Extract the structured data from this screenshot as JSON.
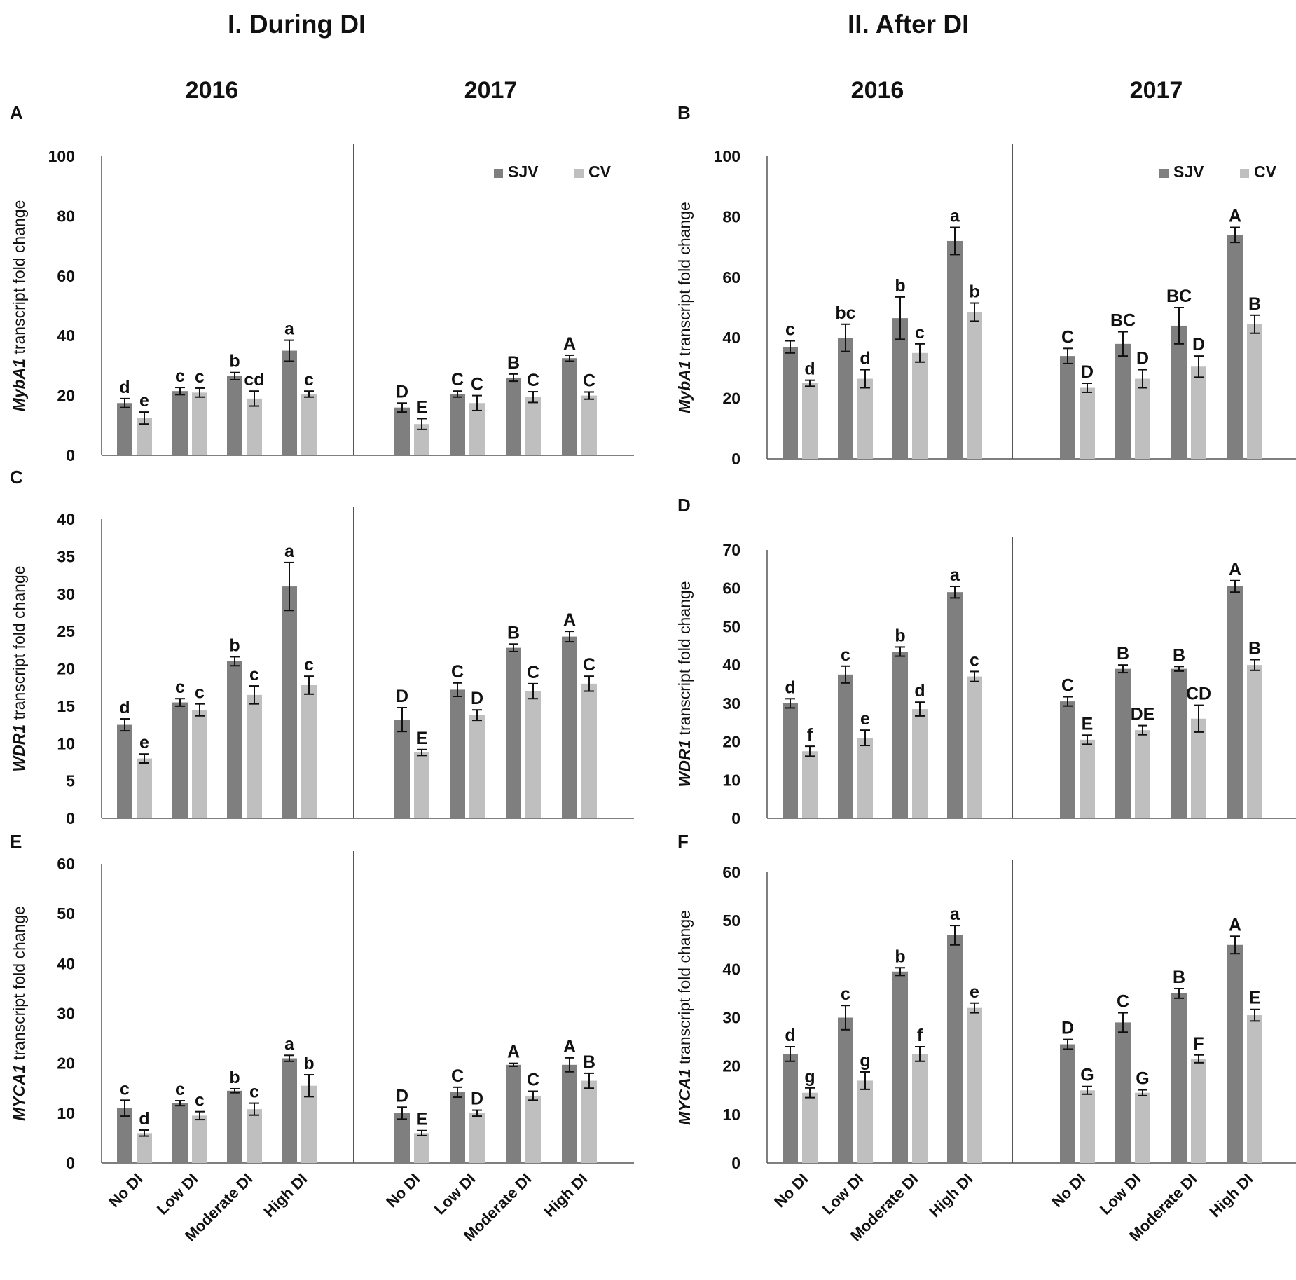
{
  "headers": {
    "during": "I. During DI",
    "after": "II. After DI"
  },
  "colors": {
    "sjv": "#7f7f7f",
    "cv": "#bfbfbf",
    "axis": "#555555",
    "text": "#111111"
  },
  "chart_data": [
    {
      "panel": "A",
      "type": "bar",
      "ylabel_gene": "MybA1",
      "ylabel_rest": " transcript fold change",
      "ylim": [
        0,
        100
      ],
      "yticks": [
        0,
        20,
        40,
        60,
        80,
        100
      ],
      "legend": [
        "SJV",
        "CV"
      ],
      "legend_position": "top-right",
      "years": [
        {
          "year": "2016",
          "categories": [
            "No DI",
            "Low DI",
            "Moderate DI",
            "High DI"
          ],
          "series": [
            {
              "name": "SJV",
              "values": [
                17.5,
                21.5,
                26.5,
                35
              ],
              "errors": [
                1.5,
                1.2,
                1.2,
                3.5
              ],
              "letters": [
                "d",
                "c",
                "b",
                "a"
              ]
            },
            {
              "name": "CV",
              "values": [
                12.5,
                21,
                19,
                20.5
              ],
              "errors": [
                2,
                1.5,
                2.5,
                1
              ],
              "letters": [
                "e",
                "c",
                "cd",
                "c"
              ]
            }
          ]
        },
        {
          "year": "2017",
          "categories": [
            "No DI",
            "Low DI",
            "Moderate DI",
            "High DI"
          ],
          "series": [
            {
              "name": "SJV",
              "values": [
                16,
                20.5,
                26,
                32.5
              ],
              "errors": [
                1.5,
                1,
                1.2,
                1
              ],
              "letters": [
                "D",
                "C",
                "B",
                "A"
              ]
            },
            {
              "name": "CV",
              "values": [
                10.5,
                17.5,
                19.5,
                20
              ],
              "errors": [
                1.8,
                2.5,
                1.8,
                1.2
              ],
              "letters": [
                "E",
                "C",
                "C",
                "C"
              ]
            }
          ]
        }
      ]
    },
    {
      "panel": "B",
      "type": "bar",
      "ylabel_gene": "MybA1",
      "ylabel_rest": " transcript fold change",
      "ylim": [
        0,
        100
      ],
      "yticks": [
        0,
        20,
        40,
        60,
        80,
        100
      ],
      "legend": [
        "SJV",
        "CV"
      ],
      "legend_position": "top-right",
      "years": [
        {
          "year": "2016",
          "categories": [
            "No DI",
            "Low DI",
            "Moderate DI",
            "High DI"
          ],
          "series": [
            {
              "name": "SJV",
              "values": [
                37,
                40,
                46.5,
                72
              ],
              "errors": [
                2,
                4.5,
                7,
                4.5
              ],
              "letters": [
                "c",
                "bc",
                "b",
                "a"
              ]
            },
            {
              "name": "CV",
              "values": [
                25,
                26.5,
                35,
                48.5
              ],
              "errors": [
                1,
                3,
                3,
                3
              ],
              "letters": [
                "d",
                "d",
                "c",
                "b"
              ]
            }
          ]
        },
        {
          "year": "2017",
          "categories": [
            "No DI",
            "Low DI",
            "Moderate DI",
            "High DI"
          ],
          "series": [
            {
              "name": "SJV",
              "values": [
                34,
                38,
                44,
                74
              ],
              "errors": [
                2.5,
                4,
                6,
                2.5
              ],
              "letters": [
                "C",
                "BC",
                "BC",
                "A"
              ]
            },
            {
              "name": "CV",
              "values": [
                23.5,
                26.5,
                30.5,
                44.5
              ],
              "errors": [
                1.5,
                3,
                3.5,
                3
              ],
              "letters": [
                "D",
                "D",
                "D",
                "B"
              ]
            }
          ]
        }
      ]
    },
    {
      "panel": "C",
      "type": "bar",
      "ylabel_gene": "WDR1",
      "ylabel_rest": " transcript  fold change",
      "ylim": [
        0,
        40
      ],
      "yticks": [
        0,
        5,
        10,
        15,
        20,
        25,
        30,
        35,
        40
      ],
      "legend": [],
      "legend_position": "none",
      "years": [
        {
          "year": "2016",
          "categories": [
            "No DI",
            "Low DI",
            "Moderate DI",
            "High DI"
          ],
          "series": [
            {
              "name": "SJV",
              "values": [
                12.5,
                15.5,
                21,
                31
              ],
              "errors": [
                0.8,
                0.5,
                0.6,
                3.2
              ],
              "letters": [
                "d",
                "c",
                "b",
                "a"
              ]
            },
            {
              "name": "CV",
              "values": [
                8,
                14.5,
                16.5,
                17.8
              ],
              "errors": [
                0.6,
                0.8,
                1.2,
                1.2
              ],
              "letters": [
                "e",
                "c",
                "c",
                "c"
              ]
            }
          ]
        },
        {
          "year": "2017",
          "categories": [
            "No DI",
            "Low DI",
            "Moderate DI",
            "High DI"
          ],
          "series": [
            {
              "name": "SJV",
              "values": [
                13.2,
                17.2,
                22.8,
                24.3
              ],
              "errors": [
                1.6,
                0.9,
                0.5,
                0.7
              ],
              "letters": [
                "D",
                "C",
                "B",
                "A"
              ]
            },
            {
              "name": "CV",
              "values": [
                8.8,
                13.8,
                17,
                18
              ],
              "errors": [
                0.4,
                0.7,
                1,
                1
              ],
              "letters": [
                "E",
                "D",
                "C",
                "C"
              ]
            }
          ]
        }
      ]
    },
    {
      "panel": "D",
      "type": "bar",
      "ylabel_gene": "WDR1",
      "ylabel_rest": " transcript  fold change",
      "ylim": [
        0,
        70
      ],
      "yticks": [
        0,
        10,
        20,
        30,
        40,
        50,
        60,
        70
      ],
      "legend": [],
      "legend_position": "none",
      "years": [
        {
          "year": "2016",
          "categories": [
            "No DI",
            "Low DI",
            "Moderate DI",
            "High DI"
          ],
          "series": [
            {
              "name": "SJV",
              "values": [
                30,
                37.5,
                43.5,
                59
              ],
              "errors": [
                1.2,
                2.2,
                1.2,
                1.5
              ],
              "letters": [
                "d",
                "c",
                "b",
                "a"
              ]
            },
            {
              "name": "CV",
              "values": [
                17.5,
                21,
                28.5,
                37
              ],
              "errors": [
                1.3,
                2,
                1.8,
                1.3
              ],
              "letters": [
                "f",
                "e",
                "d",
                "c"
              ]
            }
          ]
        },
        {
          "year": "2017",
          "categories": [
            "No DI",
            "Low DI",
            "Moderate DI",
            "High DI"
          ],
          "series": [
            {
              "name": "SJV",
              "values": [
                30.5,
                39,
                39,
                60.5
              ],
              "errors": [
                1.2,
                1,
                0.6,
                1.5
              ],
              "letters": [
                "C",
                "B",
                "B",
                "A"
              ]
            },
            {
              "name": "CV",
              "values": [
                20.5,
                23,
                26,
                40
              ],
              "errors": [
                1.2,
                1.2,
                3.5,
                1.4
              ],
              "letters": [
                "E",
                "DE",
                "CD",
                "B"
              ]
            }
          ]
        }
      ]
    },
    {
      "panel": "E",
      "type": "bar",
      "ylabel_gene": "MYCA1",
      "ylabel_rest": " transcript  fold change",
      "ylim": [
        0,
        60
      ],
      "yticks": [
        0,
        10,
        20,
        30,
        40,
        50,
        60
      ],
      "legend": [],
      "legend_position": "none",
      "years": [
        {
          "year": "2016",
          "categories": [
            "No DI",
            "Low DI",
            "Moderate DI",
            "High DI"
          ],
          "series": [
            {
              "name": "SJV",
              "values": [
                11,
                12,
                14.5,
                21
              ],
              "errors": [
                1.6,
                0.5,
                0.4,
                0.6
              ],
              "letters": [
                "c",
                "c",
                "b",
                "a"
              ]
            },
            {
              "name": "CV",
              "values": [
                6,
                9.5,
                10.8,
                15.5
              ],
              "errors": [
                0.6,
                0.8,
                1.2,
                2.2
              ],
              "letters": [
                "d",
                "c",
                "c",
                "b"
              ]
            }
          ]
        },
        {
          "year": "2017",
          "categories": [
            "No DI",
            "Low DI",
            "Moderate DI",
            "High DI"
          ],
          "series": [
            {
              "name": "SJV",
              "values": [
                10,
                14.2,
                19.7,
                19.7
              ],
              "errors": [
                1.2,
                1,
                0.3,
                1.4
              ],
              "letters": [
                "D",
                "C",
                "A",
                "A"
              ]
            },
            {
              "name": "CV",
              "values": [
                6,
                10,
                13.5,
                16.5
              ],
              "errors": [
                0.5,
                0.6,
                0.9,
                1.5
              ],
              "letters": [
                "E",
                "D",
                "C",
                "B"
              ]
            }
          ]
        }
      ]
    },
    {
      "panel": "F",
      "type": "bar",
      "ylabel_gene": "MYCA1",
      "ylabel_rest": " transcript fold change",
      "ylim": [
        0,
        60
      ],
      "yticks": [
        0,
        10,
        20,
        30,
        40,
        50,
        60
      ],
      "legend": [],
      "legend_position": "none",
      "years": [
        {
          "year": "2016",
          "categories": [
            "No DI",
            "Low DI",
            "Moderate DI",
            "High DI"
          ],
          "series": [
            {
              "name": "SJV",
              "values": [
                22.5,
                30,
                39.5,
                47
              ],
              "errors": [
                1.5,
                2.5,
                0.8,
                2
              ],
              "letters": [
                "d",
                "c",
                "b",
                "a"
              ]
            },
            {
              "name": "CV",
              "values": [
                14.5,
                17,
                22.5,
                32
              ],
              "errors": [
                1,
                1.8,
                1.5,
                1
              ],
              "letters": [
                "g",
                "g",
                "f",
                "e"
              ]
            }
          ]
        },
        {
          "year": "2017",
          "categories": [
            "No DI",
            "Low DI",
            "Moderate DI",
            "High DI"
          ],
          "series": [
            {
              "name": "SJV",
              "values": [
                24.5,
                29,
                35,
                45
              ],
              "errors": [
                1,
                2,
                1,
                1.8
              ],
              "letters": [
                "D",
                "C",
                "B",
                "A"
              ]
            },
            {
              "name": "CV",
              "values": [
                15,
                14.5,
                21.5,
                30.5
              ],
              "errors": [
                0.8,
                0.6,
                0.8,
                1.2
              ],
              "letters": [
                "G",
                "G",
                "F",
                "E"
              ]
            }
          ]
        }
      ]
    }
  ]
}
